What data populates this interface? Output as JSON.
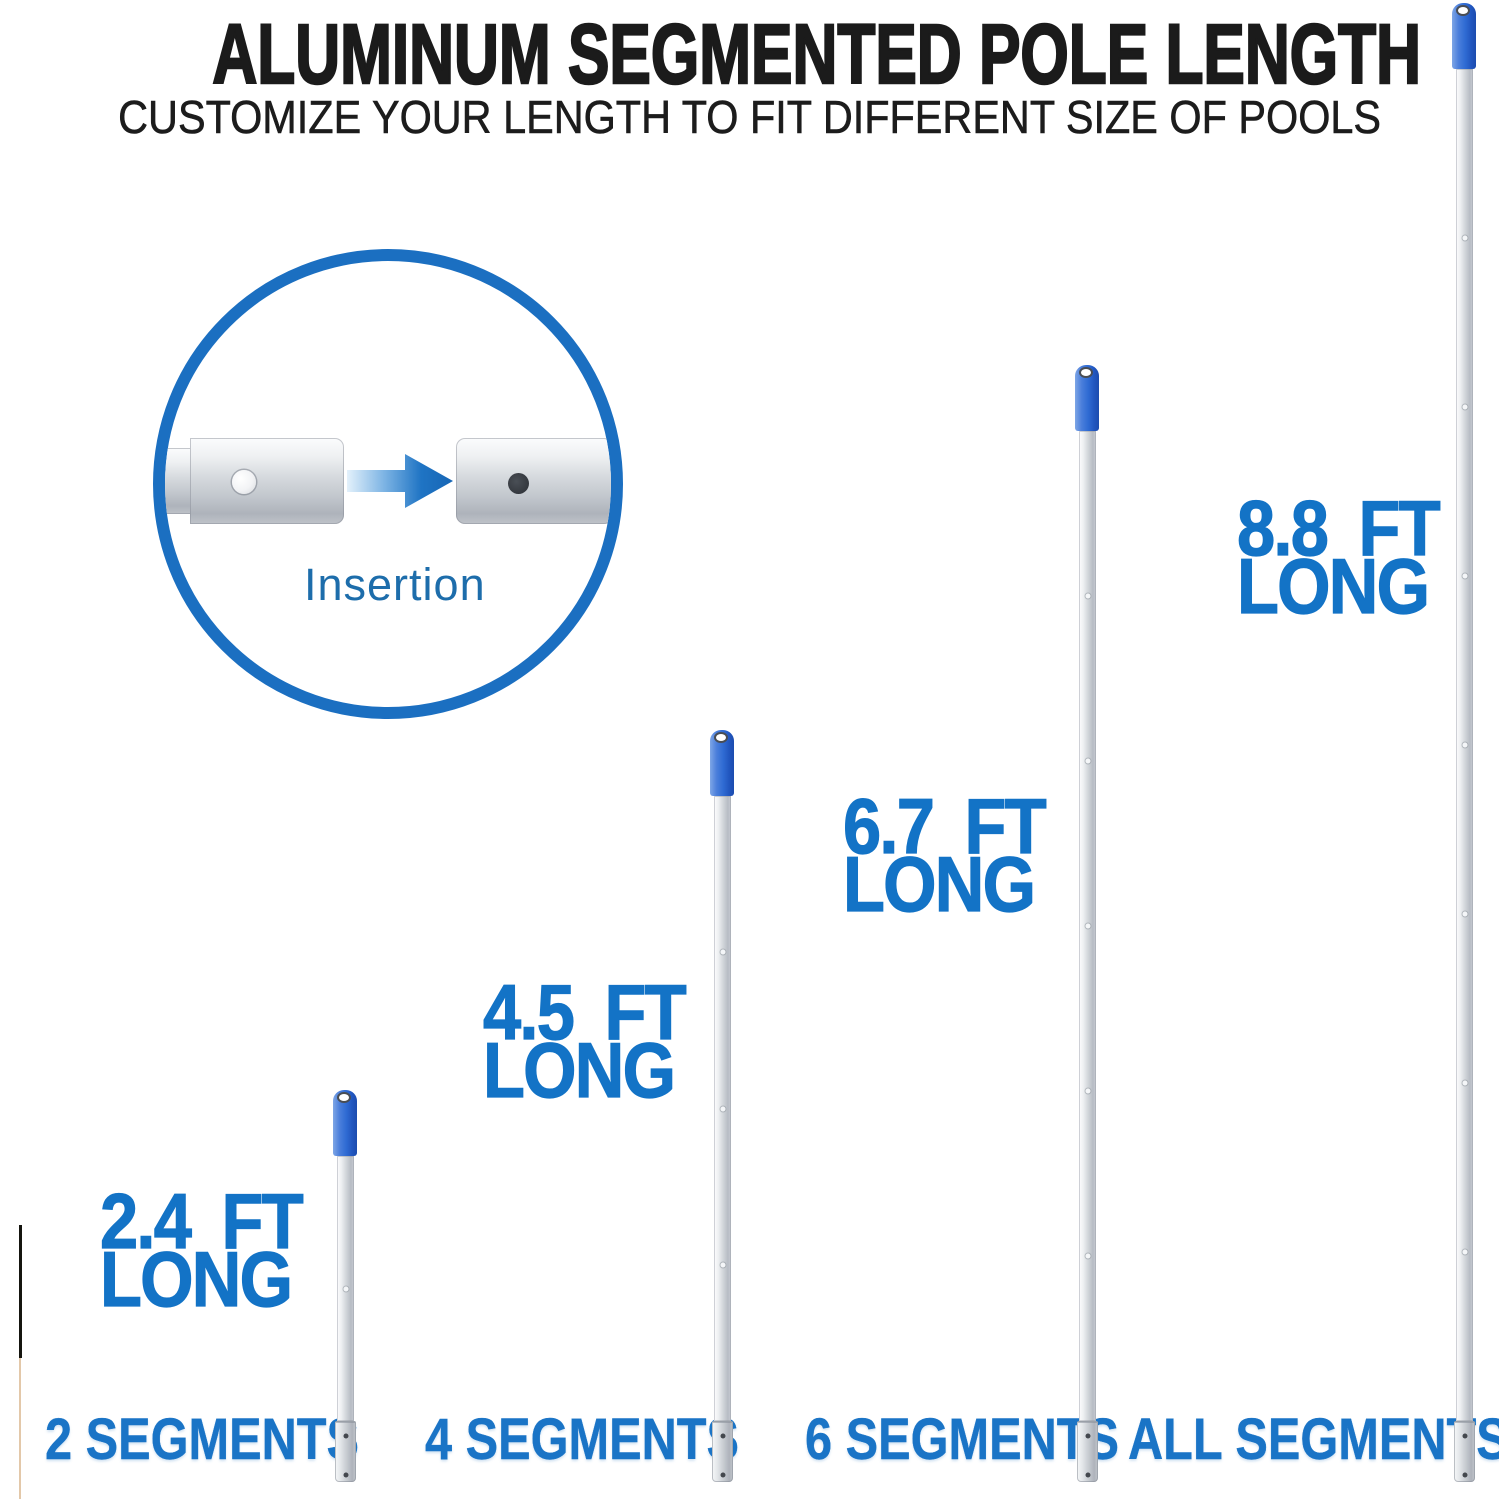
{
  "header": {
    "title": "ALUMINUM SEGMENTED POLE LENGTH",
    "subtitle": "CUSTOMIZE YOUR LENGTH TO FIT DIFFERENT SIZE OF POOLS"
  },
  "inset": {
    "caption": "Insertion"
  },
  "poles": [
    {
      "length": "2.4 FT",
      "long_word": "LONG",
      "segments": 2,
      "segments_label": "2 SEGMENTS"
    },
    {
      "length": "4.5 FT",
      "long_word": "LONG",
      "segments": 4,
      "segments_label": "4 SEGMENTS"
    },
    {
      "length": "6.7 FT",
      "long_word": "LONG",
      "segments": 6,
      "segments_label": "6 SEGMENTS"
    },
    {
      "length": "8.8 FT",
      "long_word": "LONG",
      "segments": 8,
      "segments_label": "ALL SEGMENTS"
    }
  ],
  "colors": {
    "label_blue": "#1373c6",
    "segments_blue": "#1a74c6",
    "grip_blue": "#2f6bd3",
    "circle_blue": "#1b6fc1",
    "caption_blue": "#1d6dab",
    "title_color": "#1b1b1b",
    "tube_silver": "#c2c7cd"
  }
}
